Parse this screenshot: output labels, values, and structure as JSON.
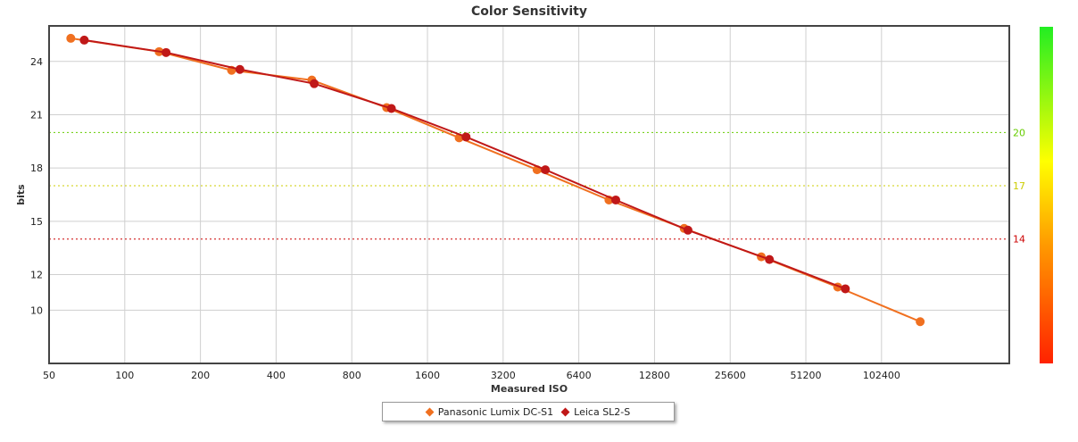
{
  "chart_data": {
    "type": "line",
    "title": "Color Sensitivity",
    "xlabel": "Measured ISO",
    "ylabel": "bits",
    "x_scale": "log2",
    "xlim": [
      50,
      330000
    ],
    "ylim": [
      7,
      26
    ],
    "x_ticks": [
      50,
      100,
      200,
      400,
      800,
      1600,
      3200,
      6400,
      12800,
      25600,
      51200,
      102400
    ],
    "y_ticks": [
      10,
      12,
      15,
      18,
      21,
      24
    ],
    "grid": true,
    "reference_lines": [
      {
        "value": 20,
        "label": "20",
        "color": "#66cc00"
      },
      {
        "value": 17,
        "label": "17",
        "color": "#cccc00"
      },
      {
        "value": 14,
        "label": "14",
        "color": "#cc0000"
      }
    ],
    "color_scale": {
      "top": "#22ee22",
      "upper_mid": "#ffff00",
      "lower_mid": "#ff9900",
      "bottom": "#ff2200"
    },
    "legend_position": "bottom-center",
    "series": [
      {
        "name": "Panasonic Lumix DC-S1",
        "color": "#f07020",
        "x": [
          61,
          137,
          266,
          555,
          1101,
          2139,
          4366,
          8434,
          16794,
          34040,
          68560,
          145910
        ],
        "y": [
          25.3,
          24.55,
          23.5,
          22.95,
          21.4,
          19.7,
          17.9,
          16.2,
          14.6,
          13.0,
          11.3,
          9.35
        ]
      },
      {
        "name": "Leica SL2-S",
        "color": "#c01818",
        "x": [
          69,
          146,
          287,
          567,
          1150,
          2278,
          4710,
          8976,
          17391,
          36680,
          73520
        ],
        "y": [
          25.2,
          24.5,
          23.55,
          22.75,
          21.35,
          19.75,
          17.9,
          16.2,
          14.5,
          12.85,
          11.2
        ]
      }
    ]
  }
}
